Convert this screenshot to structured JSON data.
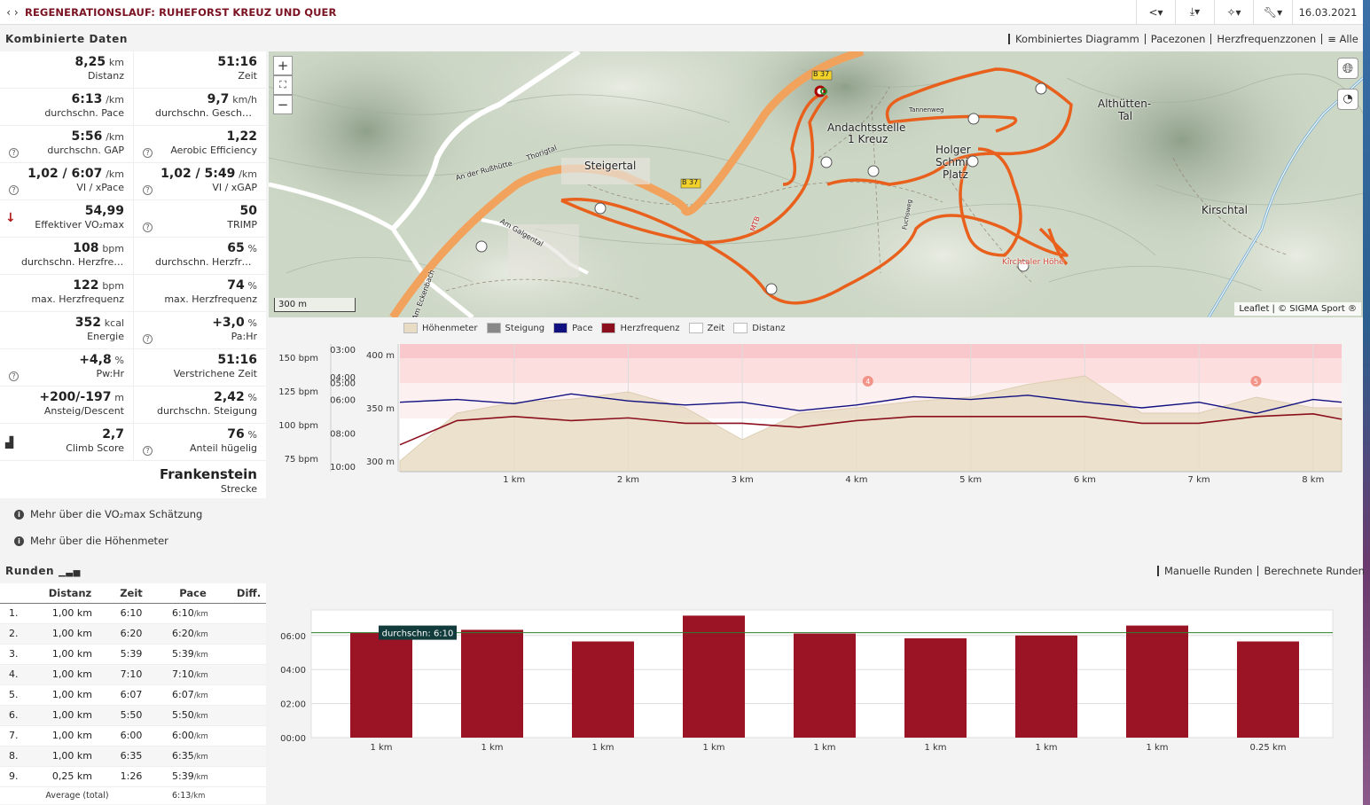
{
  "window": {
    "title": "REGENERATIONSLAUF: RUHEFORST KREUZ UND QUER",
    "date": "16.03.2021",
    "back_icon": "chevron-left-icon",
    "forward_icon": "chevron-right-icon",
    "tools": [
      "share-icon",
      "download-icon",
      "magic-wand-icon",
      "wrench-icon"
    ]
  },
  "combined": {
    "header": "Kombinierte Daten",
    "tabs": [
      "Kombiniertes Diagramm",
      "Pacezonen",
      "Herzfrequenzzonen",
      "≡ Alle"
    ],
    "stats": [
      [
        {
          "value": "8,25",
          "unit": "km",
          "label": "Distanz"
        },
        {
          "value": "51:16",
          "unit": "",
          "label": "Zeit"
        }
      ],
      [
        {
          "value": "6:13",
          "unit": "/km",
          "label": "durchschn. Pace"
        },
        {
          "value": "9,7",
          "unit": "km/h",
          "label": "durchschn. Geschwin..."
        }
      ],
      [
        {
          "value": "5:56",
          "unit": "/km",
          "label": "durchschn. GAP",
          "help": true
        },
        {
          "value": "1,22",
          "unit": "",
          "label": "Aerobic Efficiency",
          "help": true
        }
      ],
      [
        {
          "value": "1,02 / 6:07",
          "unit": "/km",
          "label": "VI / xPace",
          "help": true
        },
        {
          "value": "1,02 / 5:49",
          "unit": "/km",
          "label": "VI / xGAP",
          "help": true
        }
      ],
      [
        {
          "value": "54,99",
          "unit": "",
          "label": "Effektiver VO₂max",
          "arrow": true
        },
        {
          "value": "50",
          "unit": "",
          "label": "TRIMP",
          "help": true
        }
      ],
      [
        {
          "value": "108",
          "unit": "bpm",
          "label": "durchschn. Herzfrequ..."
        },
        {
          "value": "65",
          "unit": "%",
          "label": "durchschn. Herzfrequ..."
        }
      ],
      [
        {
          "value": "122",
          "unit": "bpm",
          "label": "max. Herzfrequenz"
        },
        {
          "value": "74",
          "unit": "%",
          "label": "max. Herzfrequenz"
        }
      ],
      [
        {
          "value": "352",
          "unit": "kcal",
          "label": "Energie"
        },
        {
          "value": "+3,0",
          "unit": "%",
          "label": "Pa:Hr",
          "help": true
        }
      ],
      [
        {
          "value": "+4,8",
          "unit": "%",
          "label": "Pw:Hr",
          "help": true
        },
        {
          "value": "51:16",
          "unit": "",
          "label": "Verstrichene Zeit"
        }
      ],
      [
        {
          "value": "+200/-197",
          "unit": "m",
          "label": "Ansteig/Descent"
        },
        {
          "value": "2,42",
          "unit": "%",
          "label": "durchschn. Steigung"
        }
      ],
      [
        {
          "value": "2,7",
          "unit": "",
          "label": "Climb Score",
          "chart": true
        },
        {
          "value": "76",
          "unit": "%",
          "label": "Anteil hügelig",
          "help": true
        }
      ]
    ],
    "shoe": {
      "value": "Frankenstein",
      "label": "Strecke"
    },
    "info_links": [
      "Mehr über die VO₂max Schätzung",
      "Mehr über die Höhenmeter"
    ]
  },
  "map": {
    "zoom_in": "+",
    "zoom_out": "−",
    "fullscreen_icon": "fullscreen-icon",
    "layers_icon": "globe-icon",
    "speed_icon": "speedometer-icon",
    "scale": "300 m",
    "attribution": "Leaflet | © SIGMA Sport ®",
    "labels": [
      "Steigertal",
      "Andachtsstelle",
      "1 Kreuz",
      "Holger",
      "Schmi",
      "Platz",
      "Althütten-",
      "Tal",
      "Kirschtal",
      "B 37",
      "Kirchtaler Höhe",
      "Am Eckenbach",
      "Am Galgental",
      "An der Rußhütte",
      "Thorigtal",
      "MTB",
      "Tannenweg",
      "Fuchsweg"
    ]
  },
  "elevation": {
    "legend": [
      {
        "name": "Höhenmeter",
        "color": "#e8dcc4"
      },
      {
        "name": "Steigung",
        "color": "#888888"
      },
      {
        "name": "Pace",
        "color": "#101080"
      },
      {
        "name": "Herzfrequenz",
        "color": "#8b0f1c"
      },
      {
        "name": "Zeit",
        "color": "#ffffff"
      },
      {
        "name": "Distanz",
        "color": "#ffffff"
      }
    ],
    "hr_ticks": [
      "150 bpm",
      "125 bpm",
      "100 bpm",
      "75 bpm"
    ],
    "pace_ticks": [
      "03:00",
      "04:00",
      "05:00",
      "06:00",
      "08:00",
      "10:00"
    ],
    "alt_ticks": [
      "400 m",
      "350 m",
      "300 m"
    ],
    "x_ticks": [
      "1 km",
      "2 km",
      "3 km",
      "4 km",
      "5 km",
      "6 km",
      "7 km",
      "8 km"
    ],
    "markers": [
      "4",
      "5"
    ]
  },
  "chart_data": [
    {
      "type": "line",
      "title": "",
      "xlabel": "",
      "ylabel": "",
      "x": [
        0,
        0.5,
        1,
        1.5,
        2,
        2.5,
        3,
        3.5,
        4,
        4.5,
        5,
        5.5,
        6,
        6.5,
        7,
        7.5,
        8,
        8.25
      ],
      "xlim": [
        0,
        8.25
      ],
      "series": [
        {
          "name": "Höhenmeter",
          "axis": "m",
          "values": [
            300,
            345,
            355,
            358,
            365,
            350,
            320,
            345,
            350,
            356,
            360,
            372,
            380,
            345,
            345,
            360,
            350,
            350
          ]
        },
        {
          "name": "Herzfrequenz",
          "axis": "bpm",
          "values": [
            85,
            103,
            106,
            103,
            105,
            101,
            101,
            98,
            103,
            106,
            106,
            106,
            106,
            101,
            101,
            106,
            108,
            104
          ]
        },
        {
          "name": "Pace",
          "axis": "min/km",
          "values": [
            "06:10",
            "06:00",
            "06:15",
            "05:40",
            "06:05",
            "06:20",
            "06:10",
            "06:40",
            "06:20",
            "05:50",
            "06:00",
            "05:45",
            "06:10",
            "06:30",
            "06:10",
            "06:50",
            "06:00",
            "06:10"
          ]
        }
      ],
      "ylim_m": [
        290,
        410
      ],
      "ylim_bpm": [
        65,
        160
      ]
    },
    {
      "type": "bar",
      "title": "",
      "categories": [
        "1 km",
        "1 km",
        "1 km",
        "1 km",
        "1 km",
        "1 km",
        "1 km",
        "1 km",
        "0.25 km"
      ],
      "values": [
        "06:10",
        "06:20",
        "05:39",
        "07:10",
        "06:07",
        "05:50",
        "06:00",
        "06:35",
        "05:39"
      ],
      "y_ticks": [
        "00:00",
        "02:00",
        "04:00",
        "06:00"
      ],
      "ylim": [
        "00:00",
        "07:30"
      ],
      "average_label": "durchschn: 6:10",
      "average": "06:10",
      "color": "#9b1425"
    }
  ],
  "laps": {
    "header": "Runden",
    "header_icon": "bar-chart-icon",
    "tabs": [
      "Manuelle Runden",
      "Berechnete Runden"
    ],
    "columns": [
      "",
      "Distanz",
      "Zeit",
      "Pace",
      "Diff."
    ],
    "rows": [
      {
        "n": "1.",
        "dist": "1,00 km",
        "time": "6:10",
        "pace": "6:10",
        "pace_unit": "/km"
      },
      {
        "n": "2.",
        "dist": "1,00 km",
        "time": "6:20",
        "pace": "6:20",
        "pace_unit": "/km"
      },
      {
        "n": "3.",
        "dist": "1,00 km",
        "time": "5:39",
        "pace": "5:39",
        "pace_unit": "/km"
      },
      {
        "n": "4.",
        "dist": "1,00 km",
        "time": "7:10",
        "pace": "7:10",
        "pace_unit": "/km"
      },
      {
        "n": "5.",
        "dist": "1,00 km",
        "time": "6:07",
        "pace": "6:07",
        "pace_unit": "/km"
      },
      {
        "n": "6.",
        "dist": "1,00 km",
        "time": "5:50",
        "pace": "5:50",
        "pace_unit": "/km"
      },
      {
        "n": "7.",
        "dist": "1,00 km",
        "time": "6:00",
        "pace": "6:00",
        "pace_unit": "/km"
      },
      {
        "n": "8.",
        "dist": "1,00 km",
        "time": "6:35",
        "pace": "6:35",
        "pace_unit": "/km"
      },
      {
        "n": "9.",
        "dist": "0,25 km",
        "time": "1:26",
        "pace": "5:39",
        "pace_unit": "/km"
      }
    ],
    "average": {
      "label": "Average (total)",
      "pace": "6:13",
      "unit": "/km"
    }
  }
}
